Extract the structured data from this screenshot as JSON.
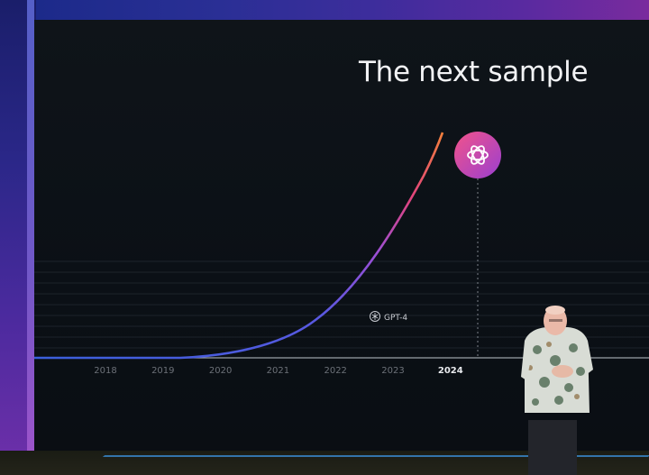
{
  "slide": {
    "title": "The next sample",
    "marker_label": "GPT-4",
    "logo_icon": "openai-logo-icon"
  },
  "chart_data": {
    "type": "line",
    "title": "The next sample",
    "categories": [
      "2018",
      "2019",
      "2020",
      "2021",
      "2022",
      "2023",
      "2024"
    ],
    "highlighted_category": "2024",
    "annotations": [
      {
        "label": "GPT-4",
        "x": "2023"
      },
      {
        "label": "openai-logo-icon",
        "x": "2024"
      }
    ],
    "grid": true,
    "curve_colors": [
      "#3b5bdc",
      "#8a4fd8",
      "#e0407e",
      "#f07a3c"
    ]
  },
  "colors": {
    "background": "#0b1016",
    "title": "#f2f3f5",
    "badge_gradient": [
      "#f0508a",
      "#9a3fd0"
    ]
  }
}
